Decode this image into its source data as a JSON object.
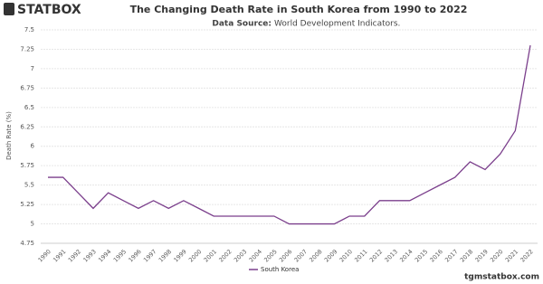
{
  "logo": "STATBOX",
  "footer": "tgmstatbox.com",
  "chart_data": {
    "type": "line",
    "title": "The Changing Death Rate in South Korea from 1990 to 2022",
    "subtitle_label": "Data Source:",
    "subtitle": "World Development Indicators.",
    "y_label": "Death Rate (%)",
    "categories": [
      "1990",
      "1991",
      "1992",
      "1993",
      "1994",
      "1995",
      "1996",
      "1997",
      "1998",
      "1999",
      "2000",
      "2001",
      "2002",
      "2003",
      "2004",
      "2005",
      "2006",
      "2007",
      "2008",
      "2009",
      "2010",
      "2011",
      "2012",
      "2013",
      "2014",
      "2015",
      "2016",
      "2017",
      "2018",
      "2019",
      "2020",
      "2021",
      "2022"
    ],
    "series": [
      {
        "name": "South Korea",
        "color": "#7b3f8c",
        "values": [
          5.6,
          5.6,
          5.4,
          5.2,
          5.4,
          5.3,
          5.2,
          5.3,
          5.2,
          5.3,
          5.2,
          5.1,
          5.1,
          5.1,
          5.1,
          5.1,
          5.0,
          5.0,
          5.0,
          5.0,
          5.1,
          5.1,
          5.3,
          5.3,
          5.3,
          5.4,
          5.5,
          5.6,
          5.8,
          5.7,
          5.9,
          6.2,
          7.3
        ]
      }
    ],
    "ylim": [
      4.75,
      7.5
    ],
    "yticks": [
      4.75,
      5,
      5.25,
      5.5,
      5.75,
      6,
      6.25,
      6.5,
      6.75,
      7,
      7.25,
      7.5
    ],
    "grid": true,
    "legend": "bottom"
  }
}
